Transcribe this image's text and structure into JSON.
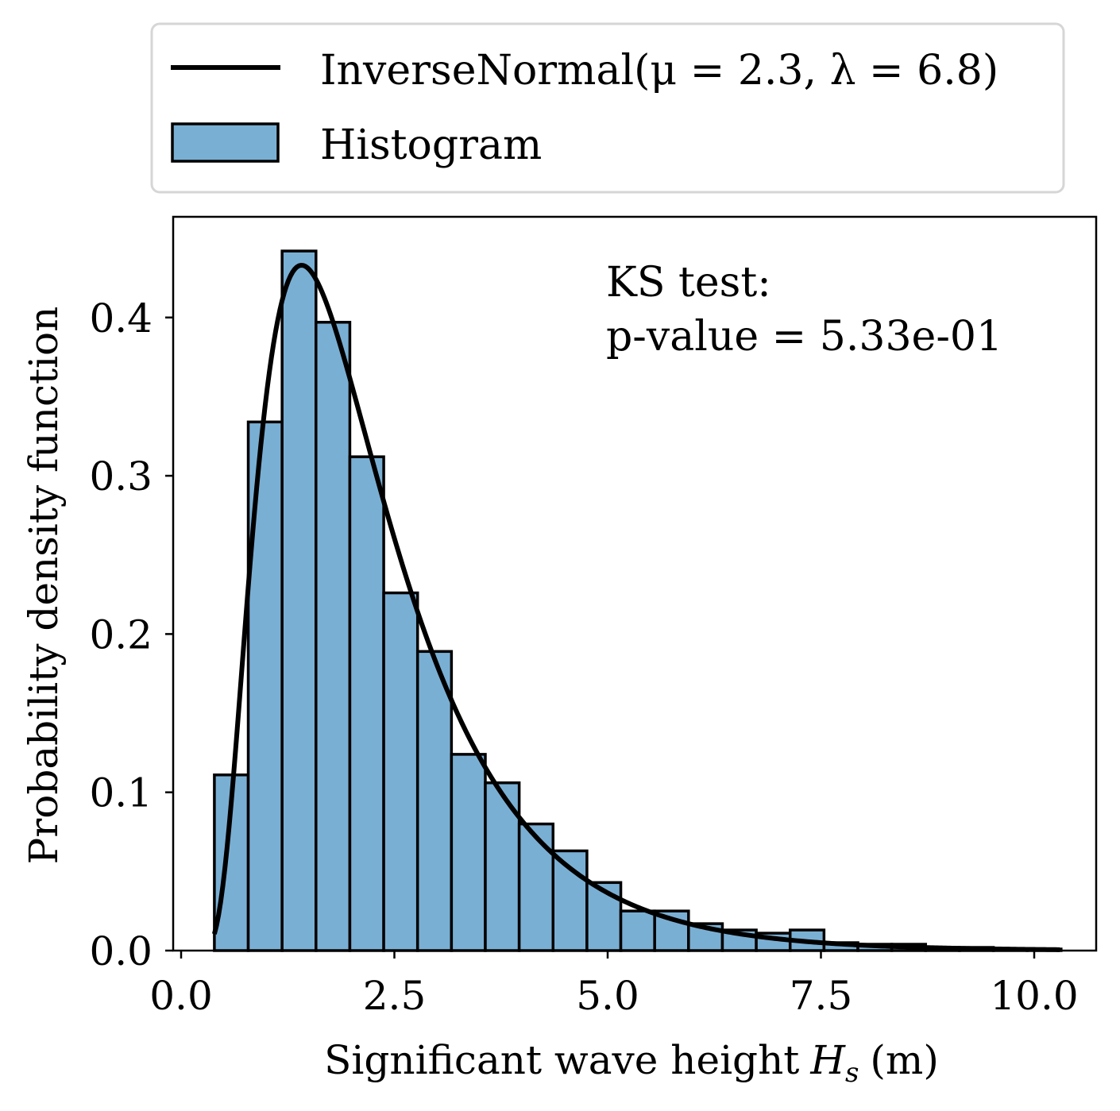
{
  "chart_data": {
    "type": "bar",
    "xlabel": "Significant wave height",
    "xlabel_symbol": "H",
    "xlabel_subscript": "s",
    "xlabel_unit": "(m)",
    "ylabel": "Probability density function",
    "xlim": [
      -0.2,
      10.7
    ],
    "ylim": [
      0,
      0.46
    ],
    "xticks": [
      0.0,
      2.5,
      5.0,
      7.5,
      10.0
    ],
    "xtick_labels": [
      "0.0",
      "2.5",
      "5.0",
      "7.5",
      "10.0"
    ],
    "yticks": [
      0.0,
      0.1,
      0.2,
      0.3,
      0.4
    ],
    "ytick_labels": [
      "0.0",
      "0.1",
      "0.2",
      "0.3",
      "0.4"
    ],
    "grid": false,
    "legend_placement": "above plot",
    "legend": [
      {
        "label": "InverseNormal(μ = 2.3, λ = 6.8)",
        "kind": "line",
        "color": "#000000"
      },
      {
        "label": "Histogram",
        "kind": "patch",
        "color": "#7aafd4"
      }
    ],
    "annotation": [
      "KS test:",
      "p-value = 5.33e-01"
    ],
    "histogram": {
      "name": "Histogram",
      "color": "#7aafd4",
      "edgecolor": "#000000",
      "bin_edges": [
        0.39,
        0.787,
        1.184,
        1.581,
        1.978,
        2.375,
        2.772,
        3.169,
        3.566,
        3.963,
        4.36,
        4.757,
        5.154,
        5.551,
        5.948,
        6.345,
        6.742,
        7.139,
        7.536,
        7.933,
        8.33,
        8.727,
        9.124,
        9.521,
        9.918,
        10.315
      ],
      "values": [
        0.111,
        0.334,
        0.442,
        0.397,
        0.312,
        0.226,
        0.189,
        0.124,
        0.106,
        0.08,
        0.063,
        0.043,
        0.025,
        0.025,
        0.017,
        0.013,
        0.011,
        0.013,
        0.005,
        0.004,
        0.004,
        0.002,
        0.002,
        0.001,
        0.001
      ]
    },
    "curve": {
      "name": "InverseNormal(μ = 2.3, λ = 6.8)",
      "distribution": "inverse_gaussian",
      "mu": 2.3,
      "lambda": 6.8,
      "x_range": [
        0.39,
        10.3
      ],
      "color": "#000000"
    }
  }
}
